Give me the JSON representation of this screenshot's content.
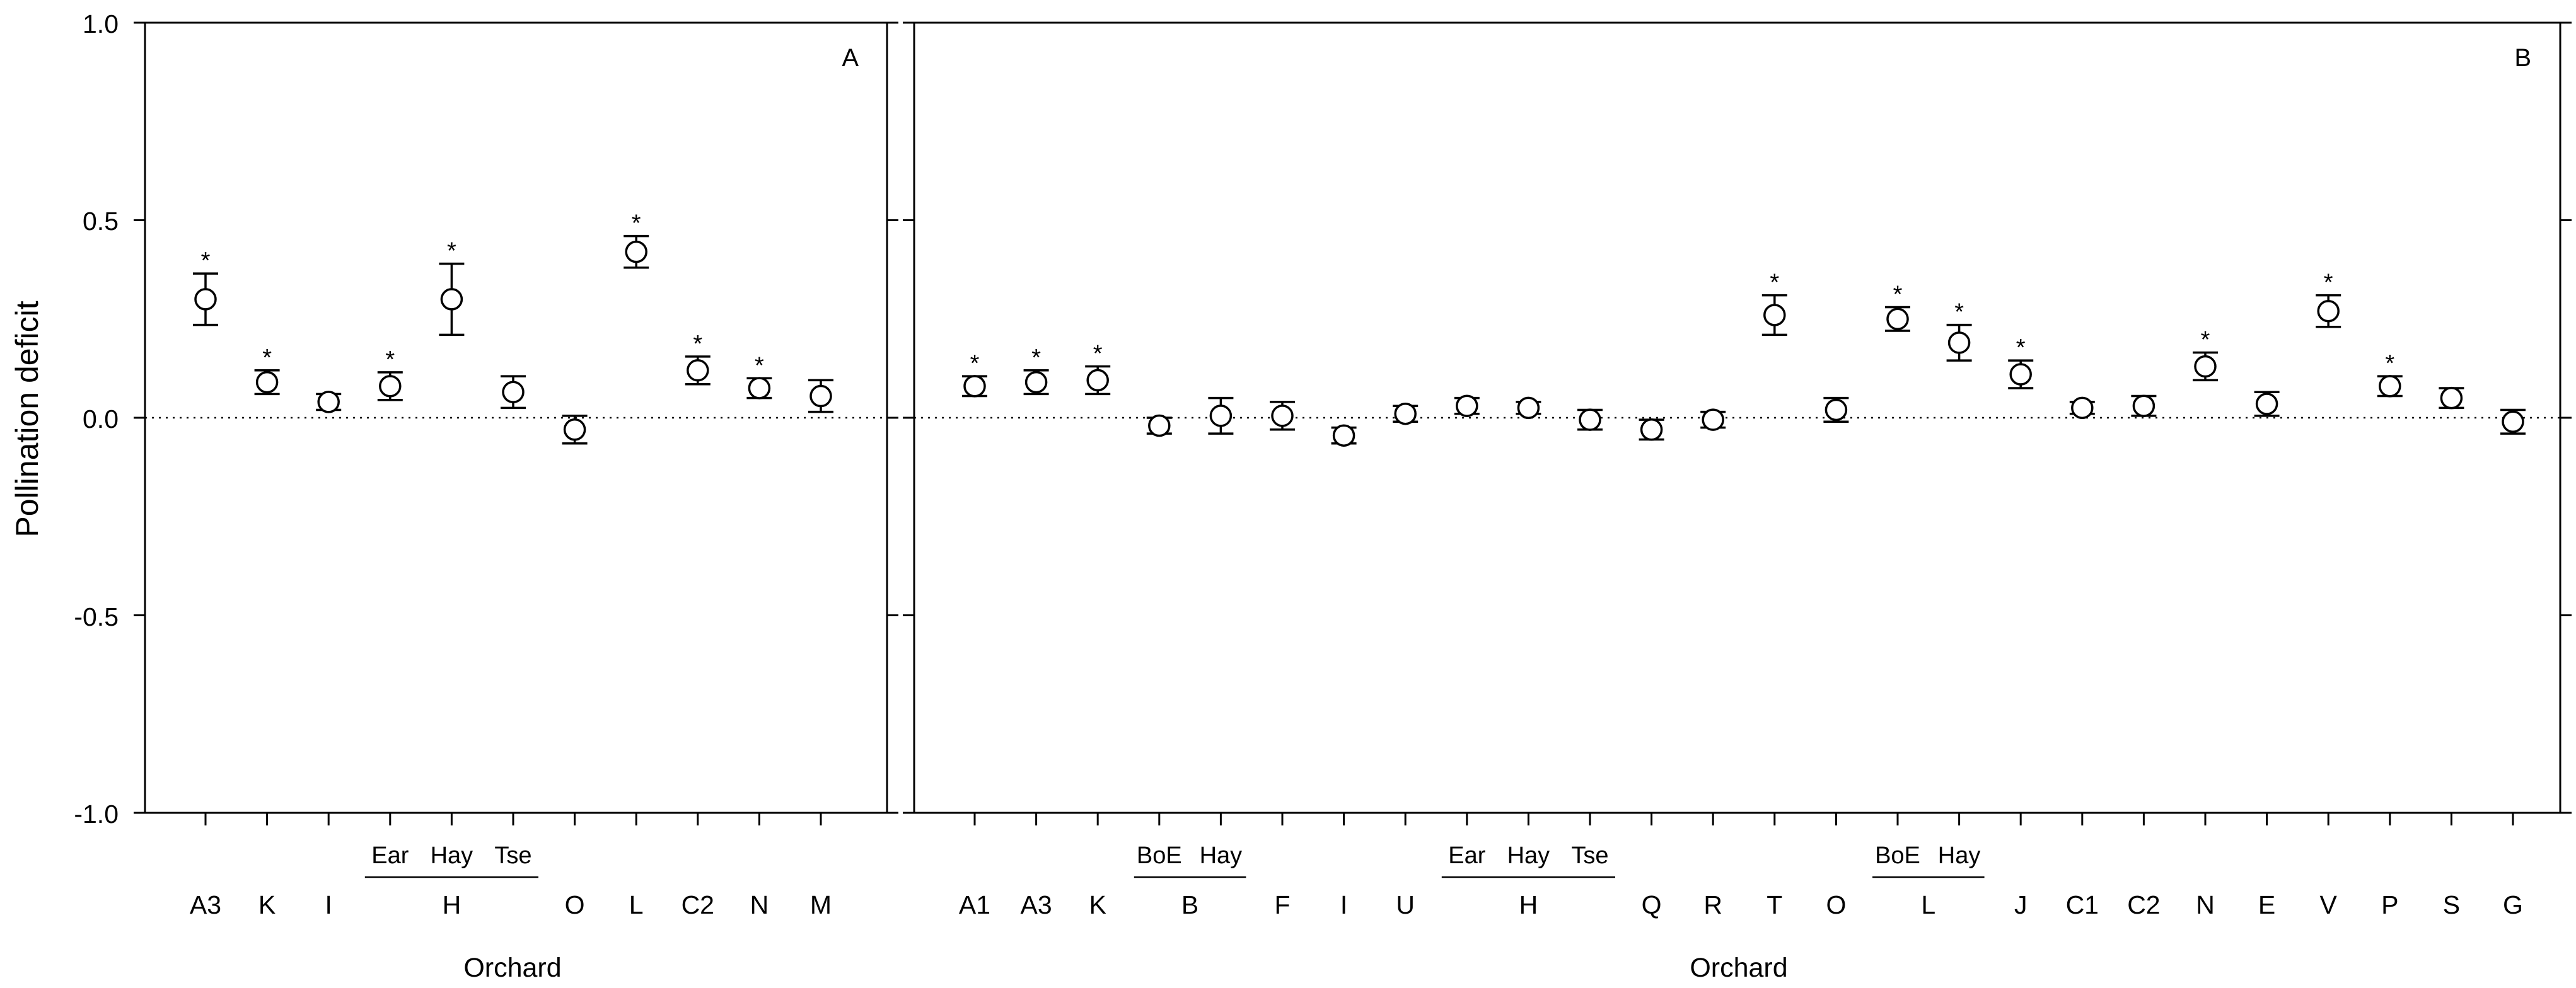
{
  "figure": {
    "ylabel": "Pollination deficit",
    "y_ticks": [
      "1.0",
      "0.5",
      "0.0",
      "-0.5",
      "-1.0"
    ]
  },
  "chart_data": [
    {
      "type": "scatter",
      "panel": "A",
      "panel_label": "A",
      "xlabel": "Orchard",
      "ylabel": "Pollination deficit",
      "ylim": [
        -1.0,
        1.0
      ],
      "y_ticks": [
        -1.0,
        -0.5,
        0.0,
        0.5,
        1.0
      ],
      "reference_line": 0.0,
      "categories": [
        "A3",
        "K",
        "I",
        "H",
        "H",
        "H",
        "O",
        "L",
        "C2",
        "N",
        "M"
      ],
      "subcategories": [
        "",
        "",
        "",
        "Ear",
        "Hay",
        "Tse",
        "",
        "",
        "",
        "",
        ""
      ],
      "groups": [
        {
          "label": "H",
          "members": [
            "Ear",
            "Hay",
            "Tse"
          ]
        }
      ],
      "values": [
        0.3,
        0.09,
        0.04,
        0.08,
        0.3,
        0.065,
        -0.03,
        0.42,
        0.12,
        0.075,
        0.055
      ],
      "error": [
        0.065,
        0.03,
        0.02,
        0.035,
        0.09,
        0.04,
        0.035,
        0.04,
        0.035,
        0.025,
        0.04
      ],
      "significant": [
        true,
        true,
        false,
        true,
        true,
        false,
        false,
        true,
        true,
        true,
        false
      ],
      "marker_note": "*"
    },
    {
      "type": "scatter",
      "panel": "B",
      "panel_label": "B",
      "xlabel": "Orchard",
      "ylim": [
        -1.0,
        1.0
      ],
      "y_ticks": [
        -1.0,
        -0.5,
        0.0,
        0.5,
        1.0
      ],
      "reference_line": 0.0,
      "categories": [
        "A1",
        "A3",
        "K",
        "B",
        "B",
        "F",
        "I",
        "U",
        "H",
        "H",
        "H",
        "Q",
        "R",
        "T",
        "O",
        "L",
        "L",
        "J",
        "C1",
        "C2",
        "N",
        "E",
        "V",
        "P",
        "S",
        "G"
      ],
      "subcategories": [
        "",
        "",
        "",
        "BoE",
        "Hay",
        "",
        "",
        "",
        "Ear",
        "Hay",
        "Tse",
        "",
        "",
        "",
        "",
        "BoE",
        "Hay",
        "",
        "",
        "",
        "",
        "",
        "",
        "",
        "",
        ""
      ],
      "groups": [
        {
          "label": "B",
          "members": [
            "BoE",
            "Hay"
          ]
        },
        {
          "label": "H",
          "members": [
            "Ear",
            "Hay",
            "Tse"
          ]
        },
        {
          "label": "L",
          "members": [
            "BoE",
            "Hay"
          ]
        }
      ],
      "values": [
        0.08,
        0.09,
        0.095,
        -0.02,
        0.005,
        0.005,
        -0.045,
        0.01,
        0.03,
        0.025,
        -0.005,
        -0.03,
        -0.005,
        0.26,
        0.02,
        0.25,
        0.19,
        0.11,
        0.025,
        0.03,
        0.13,
        0.035,
        0.27,
        0.08,
        0.05,
        -0.01
      ],
      "error": [
        0.025,
        0.03,
        0.035,
        0.02,
        0.045,
        0.035,
        0.02,
        0.02,
        0.02,
        0.015,
        0.025,
        0.025,
        0.02,
        0.05,
        0.03,
        0.03,
        0.045,
        0.035,
        0.015,
        0.025,
        0.035,
        0.03,
        0.04,
        0.025,
        0.025,
        0.03
      ],
      "significant": [
        true,
        true,
        true,
        false,
        false,
        false,
        false,
        false,
        false,
        false,
        false,
        false,
        false,
        true,
        false,
        true,
        true,
        true,
        false,
        false,
        true,
        false,
        true,
        true,
        false,
        false
      ],
      "marker_note": "*"
    }
  ]
}
